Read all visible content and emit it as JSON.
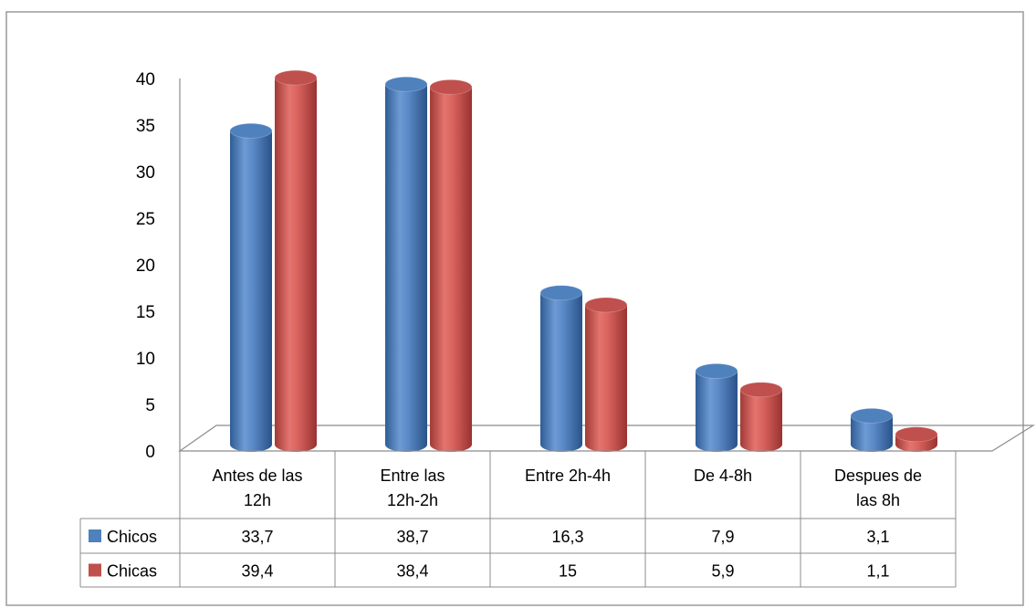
{
  "chart_data": {
    "type": "bar",
    "categories": [
      [
        "Antes de las",
        "12h"
      ],
      [
        "Entre las",
        "12h-2h"
      ],
      [
        "Entre 2h-4h"
      ],
      [
        "De 4-8h"
      ],
      [
        "Despues de",
        "las 8h"
      ]
    ],
    "series": [
      {
        "name": "Chicos",
        "values": [
          "33,7",
          "38,7",
          "16,3",
          "7,9",
          "3,1"
        ],
        "color": "#4F81BD"
      },
      {
        "name": "Chicas",
        "values": [
          "39,4",
          "38,4",
          "15",
          "5,9",
          "1,1"
        ],
        "color": "#C0504D"
      }
    ],
    "y_ticks": [
      "0",
      "5",
      "10",
      "15",
      "20",
      "25",
      "30",
      "35",
      "40"
    ],
    "ylim": [
      0,
      40
    ],
    "legend": "data-table",
    "grid": false
  }
}
